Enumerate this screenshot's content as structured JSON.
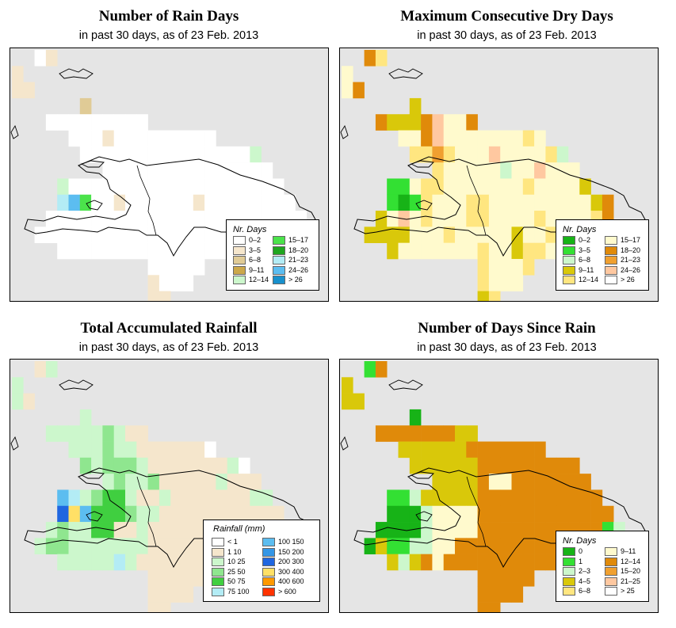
{
  "panels": [
    {
      "key": "rain_days",
      "title": "Number of Rain Days",
      "subtitle": "in past 30 days, as of  23 Feb. 2013",
      "legend_title": "Nr. Days",
      "legend": [
        {
          "label": "0–2",
          "color": "#ffffff"
        },
        {
          "label": "3–5",
          "color": "#f5e6cc"
        },
        {
          "label": "6–8",
          "color": "#e0cb96"
        },
        {
          "label": "9–11",
          "color": "#cca84a"
        },
        {
          "label": "12–14",
          "color": "#ccf7cc"
        },
        {
          "label": "15–17",
          "color": "#4be34b"
        },
        {
          "label": "18–20",
          "color": "#1fa61f"
        },
        {
          "label": "21–23",
          "color": "#b3ecf5"
        },
        {
          "label": "24–26",
          "color": "#5cbdf0"
        },
        {
          "label": "> 26",
          "color": "#1890cc"
        }
      ],
      "grid": [
        "..AB........................",
        "B...........................",
        "BB..........................",
        "......C.....................",
        "...AAAAAAAAA................",
        ".....AAABAAAAAAAAA..........",
        "......AAAAAAAAAAAAAAAE......",
        "........AAAAAAAAAAAAAAA.....",
        "....EAAAAAAAAAAAAAAAAAAA....",
        "....HIFAABAAAAAABAAAAAAAA...",
        "...AAAAAAAAAAAAAAAAAAAAAAA..",
        "..AAAAAAAAAAAAAAAAAAAAAAAAA.",
        "....AAAAAAAAAAAAAAAAAAA.....",
        "............AAAAA...........",
        "............BAAA............",
        "............BB.............."
      ],
      "codes": {
        "A": 0,
        "B": 1,
        "C": 2,
        "D": 3,
        "E": 4,
        "F": 5,
        "G": 6,
        "H": 7,
        "I": 8,
        "J": 9
      }
    },
    {
      "key": "dry_days",
      "title": "Maximum Consecutive Dry Days",
      "subtitle": "in past 30 days, as of  23 Feb. 2013",
      "legend_title": "Nr. Days",
      "legend": [
        {
          "label": "0–2",
          "color": "#17b317"
        },
        {
          "label": "3–5",
          "color": "#33e033"
        },
        {
          "label": "6–8",
          "color": "#ccf7cc"
        },
        {
          "label": "9–11",
          "color": "#d9c80a"
        },
        {
          "label": "12–14",
          "color": "#ffe680"
        },
        {
          "label": "15–17",
          "color": "#fffacd"
        },
        {
          "label": "18–20",
          "color": "#e08a0a"
        },
        {
          "label": "21–23",
          "color": "#f0a030"
        },
        {
          "label": "24–26",
          "color": "#ffc8a0"
        },
        {
          "label": "> 26",
          "color": "#ffffff"
        }
      ],
      "grid": [
        "..GE........................",
        "F...........................",
        "FG..........................",
        "......D.....................",
        "...GDDDGIFFG................",
        ".....FFGIFFFFFFFEF..........",
        "......EEHEFFFIFFFFEC........",
        "........EFFFFFCFFIFFF.......",
        "....BBFEEFFFFFFFEFFFFD......",
        "....BABEFFFEEFFFFFFFFFDG....",
        "...DFIFEFFFEEFFFFEFFFFEG....",
        "..DDDDFFFEFFFFFDFFEFFDEDG...",
        "....DFFFFFFFEFFDEEFEE.......",
        "............EFFFE...........",
        "............EFFF............",
        "............DE.............."
      ],
      "codes": {
        "A": 0,
        "B": 1,
        "C": 2,
        "D": 3,
        "E": 4,
        "F": 5,
        "G": 6,
        "H": 7,
        "I": 8,
        "J": 9
      }
    },
    {
      "key": "rainfall",
      "title": "Total Accumulated Rainfall",
      "subtitle": "in past 30 days, as of  23 Feb. 2013",
      "legend_title": "Rainfall (mm)",
      "legend": [
        {
          "label": "< 1",
          "color": "#ffffff"
        },
        {
          "label": "1   10",
          "color": "#f5e6cc"
        },
        {
          "label": "10   25",
          "color": "#ccf7cc"
        },
        {
          "label": "25   50",
          "color": "#8fe68f"
        },
        {
          "label": "50   75",
          "color": "#40cf40"
        },
        {
          "label": "75  100",
          "color": "#b3ecf5"
        },
        {
          "label": "100  150",
          "color": "#5cbdf0"
        },
        {
          "label": "150  200",
          "color": "#3396e6"
        },
        {
          "label": "200  300",
          "color": "#1f66e0"
        },
        {
          "label": "300  400",
          "color": "#ffe066"
        },
        {
          "label": "400  600",
          "color": "#ff9900"
        },
        {
          "label": "> 600",
          "color": "#ff3300"
        }
      ],
      "grid": [
        "..BC........................",
        "C...........................",
        "CB..........................",
        "......C.....................",
        "...CCCCCDCBB................",
        ".....CCCDCCBBBBBBA..........",
        "......DCDDDCBBBBBBBCA.......",
        "........CDCCDBBBBBCBBB......",
        "....GFCDEECBBCBBBBBBBCC.....",
        "....IJGEEEDCCBBBBBBBBBBB....",
        "...CDCCEEBBCBBBBBBBBBBBBB...",
        "..CDDCCCCCCCBBBBBBBBBBBBBB..",
        "....CCCCCFCBBBBBBBBBB.......",
        "............BBBBB...........",
        "............BBBB............",
        "............BB.............."
      ],
      "codes": {
        "A": 0,
        "B": 1,
        "C": 2,
        "D": 3,
        "E": 4,
        "F": 5,
        "G": 6,
        "H": 7,
        "I": 8,
        "J": 9,
        "K": 10,
        "L": 11
      }
    },
    {
      "key": "since_rain",
      "title": "Number of Days Since Rain",
      "subtitle": "in past 30 days, as of  23 Feb. 2013",
      "legend_title": "Nr. Days",
      "legend": [
        {
          "label": "0",
          "color": "#17b317"
        },
        {
          "label": "1",
          "color": "#33e033"
        },
        {
          "label": "2–3",
          "color": "#ccf7cc"
        },
        {
          "label": "4–5",
          "color": "#d9c80a"
        },
        {
          "label": "6–8",
          "color": "#ffe680"
        },
        {
          "label": "9–11",
          "color": "#fffacd"
        },
        {
          "label": "12–14",
          "color": "#e08a0a"
        },
        {
          "label": "15–20",
          "color": "#f0a030"
        },
        {
          "label": "21–25",
          "color": "#ffc8a0"
        },
        {
          "label": "> 25",
          "color": "#ffffff"
        }
      ],
      "grid": [
        "..BG........................",
        "D...........................",
        "DD..........................",
        "......A.....................",
        "...GGGGGGGDD................",
        ".....DDDDDDGGGGGGG..........",
        "......DDDDDDGGGGGGGGG.......",
        "........DDDDGFFGGGGGGG......",
        "....BBCDDDDDGGGGGGGGGGG.....",
        "....AAACFFFFGGGGGGGGGGGG....",
        "...AAAACFFFFGGGGGGGGGGGBC...",
        "..ADBBCCFFGGGGGGGGGGGGGGB...",
        "....DCDGFGGGGGGGGGGGG.......",
        "............GGGGG...........",
        "............GGGG............",
        "............GG.............."
      ],
      "codes": {
        "A": 0,
        "B": 1,
        "C": 2,
        "D": 3,
        "E": 4,
        "F": 5,
        "G": 6,
        "H": 7,
        "I": 8,
        "J": 9
      }
    }
  ]
}
